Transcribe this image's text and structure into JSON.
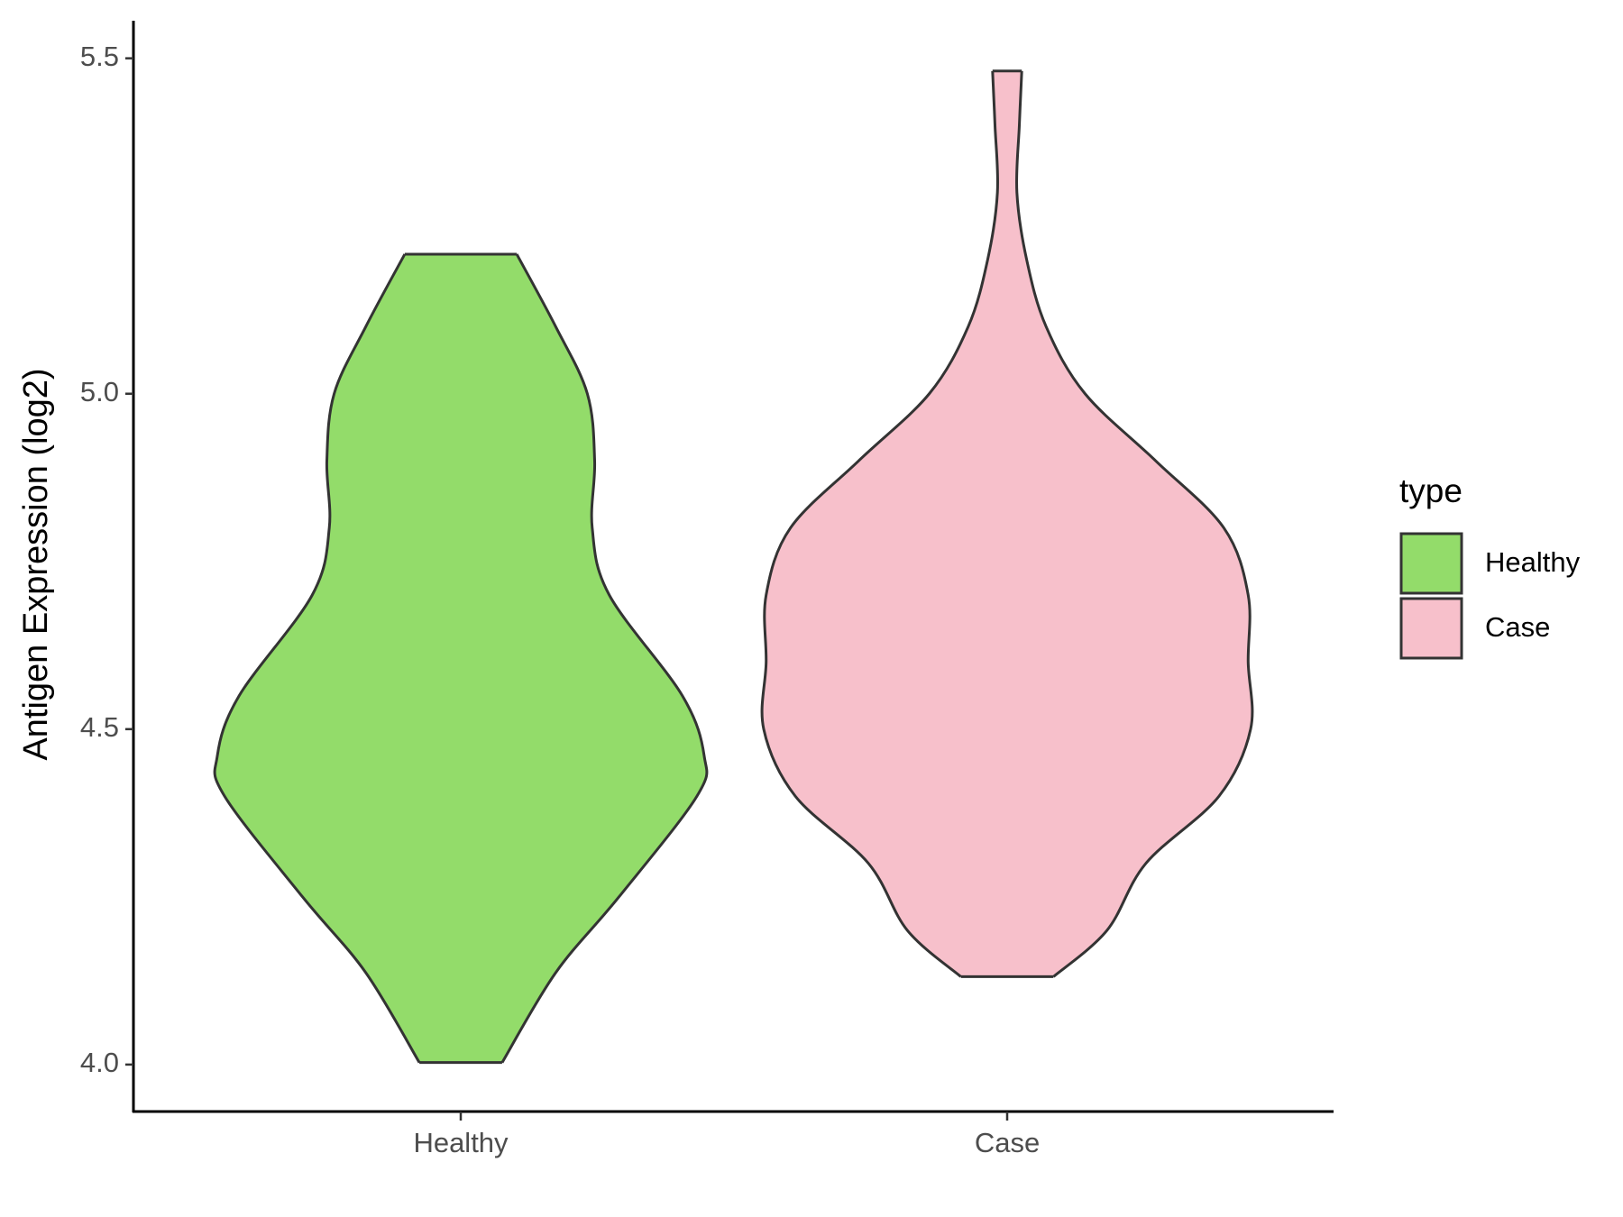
{
  "chart_data": {
    "type": "violin",
    "y_label": "Antigen Expression (log2)",
    "categories": [
      "Healthy",
      "Case"
    ],
    "ylim": [
      3.93,
      5.556
    ],
    "yticks": [
      {
        "value": 4,
        "label": "4.0"
      },
      4.5,
      {
        "value": 5,
        "label": "5.0"
      },
      5.5
    ],
    "legend_title": "type",
    "legend_position": "right",
    "series": [
      {
        "name": "Healthy",
        "color": "#93dc6a",
        "y": [
          4.003,
          4.137,
          4.25,
          4.4,
          4.46,
          4.55,
          4.7,
          4.8,
          4.9,
          5.0,
          5.1,
          5.208
        ],
        "density": [
          0.17,
          0.39,
          0.65,
          0.97,
          1.0,
          0.91,
          0.61,
          0.54,
          0.55,
          0.52,
          0.39,
          0.23
        ]
      },
      {
        "name": "Case",
        "color": "#f7c0cb",
        "y": [
          4.131,
          4.2,
          4.3,
          4.4,
          4.5,
          4.6,
          4.7,
          4.8,
          4.9,
          5.0,
          5.1,
          5.2,
          5.3,
          5.4,
          5.481
        ],
        "density": [
          0.19,
          0.41,
          0.57,
          0.87,
          1.0,
          0.99,
          0.99,
          0.89,
          0.61,
          0.32,
          0.16,
          0.08,
          0.04,
          0.05,
          0.06
        ]
      }
    ]
  }
}
